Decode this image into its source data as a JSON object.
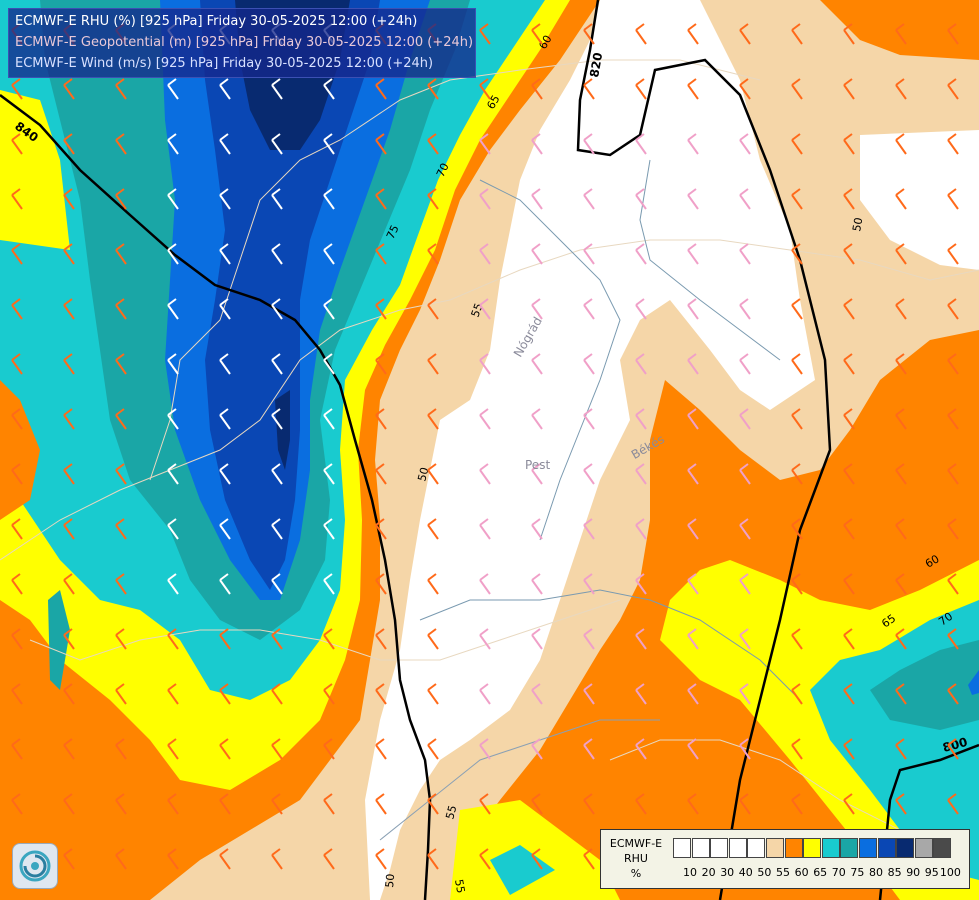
{
  "titles": {
    "line1": "ECMWF-E RHU (%) [925 hPa] Friday 30-05-2025 12:00 (+24h)",
    "line2": "ECMWF-E Geopotential (m) [925 hPa] Friday 30-05-2025 12:00 (+24h)",
    "line3": "ECMWF-E Wind (m/s) [925 hPa] Friday 30-05-2025 12:00 (+24h)"
  },
  "legend": {
    "title_line1": "ECMWF-E",
    "title_line2": "RHU",
    "title_line3": "%",
    "ticks": [
      "10",
      "20",
      "30",
      "40",
      "50",
      "55",
      "60",
      "65",
      "70",
      "75",
      "80",
      "85",
      "90",
      "95",
      "100"
    ],
    "colors": [
      "#ffffff",
      "#ffffff",
      "#ffffff",
      "#ffffff",
      "#ffffff",
      "#f5d6a8",
      "#ff8400",
      "#ffff00",
      "#19cbcf",
      "#1aa6a6",
      "#0a6ee0",
      "#0a47b4",
      "#082a70",
      "#a8a8a8",
      "#4a4a4a"
    ]
  },
  "rhu_contour_labels": [
    "50",
    "50",
    "50",
    "55",
    "55",
    "55",
    "60",
    "65",
    "70",
    "70",
    "75",
    "60",
    "65",
    "70",
    "50"
  ],
  "geopotential_labels": [
    "840",
    "820",
    "800"
  ],
  "places": [
    "Nógrád",
    "Pest",
    "Békés"
  ],
  "colors": {
    "white_band": "#ffffff",
    "band_55": "#f5d6a8",
    "band_60": "#ff8400",
    "band_65": "#ffff00",
    "band_70": "#19cbcf",
    "band_75": "#1aa6a6",
    "band_80": "#0a6ee0",
    "band_85": "#0a47b4",
    "band_90": "#082a70",
    "wind_barb_dry": "#f0a0c8",
    "wind_barb_moist": "#ff6a1a",
    "wind_barb_wet": "#ffffff"
  }
}
